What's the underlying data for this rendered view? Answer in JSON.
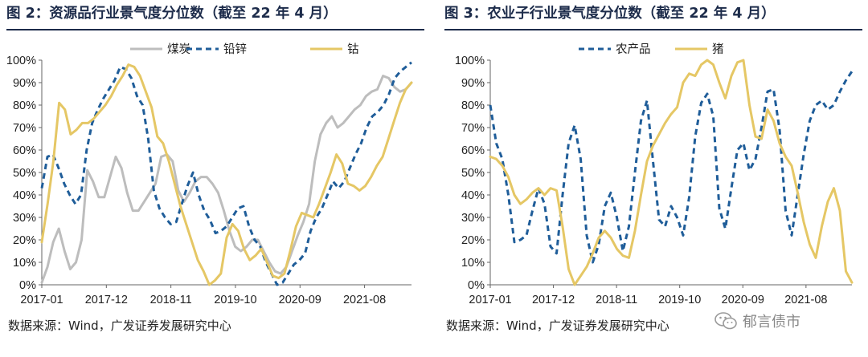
{
  "panels": [
    {
      "title": "图 2：资源品行业景气度分位数（截至 22 年 4 月）",
      "source": "数据来源：Wind，广发证券发展研究中心"
    },
    {
      "title": "图 3：农业子行业景气度分位数（截至 22 年 4 月）",
      "source": "数据来源：Wind，广发证券发展研究中心"
    }
  ],
  "watermark": {
    "text": "郁言债市",
    "icon": "wechat-icon"
  },
  "chart_data": [
    {
      "type": "line",
      "title": "图 2：资源品行业景气度分位数（截至 22 年 4 月）",
      "x_tick_labels": [
        "2017-01",
        "2017-12",
        "2018-11",
        "2019-10",
        "2020-09",
        "2021-08"
      ],
      "x_start": "2017-01",
      "x_end": "2022-04",
      "y_tick_labels": [
        "0%",
        "10%",
        "20%",
        "30%",
        "40%",
        "50%",
        "60%",
        "70%",
        "80%",
        "90%",
        "100%"
      ],
      "ylim": [
        0,
        100
      ],
      "grid": false,
      "legend_position": "top",
      "series": [
        {
          "name": "煤炭",
          "color": "#bdbdbd",
          "dash": "solid",
          "values": [
            1,
            8,
            19,
            25,
            15,
            7,
            10,
            20,
            51,
            46,
            39,
            39,
            48,
            57,
            52,
            41,
            33,
            33,
            37,
            41,
            45,
            57,
            58,
            55,
            42,
            37,
            41,
            46,
            48,
            48,
            45,
            41,
            33,
            24,
            17,
            15,
            17,
            20,
            20,
            15,
            10,
            6,
            5,
            8,
            15,
            22,
            28,
            36,
            55,
            67,
            72,
            75,
            70,
            72,
            75,
            78,
            80,
            84,
            86,
            87,
            93,
            92,
            88,
            86,
            87,
            90
          ]
        },
        {
          "name": "铅锌",
          "color": "#1f5d99",
          "dash": "dashed",
          "values": [
            43,
            57,
            58,
            52,
            45,
            40,
            36,
            40,
            60,
            72,
            78,
            83,
            87,
            91,
            97,
            96,
            92,
            84,
            80,
            65,
            42,
            34,
            30,
            27,
            28,
            36,
            44,
            50,
            40,
            33,
            29,
            23,
            24,
            26,
            30,
            34,
            35,
            26,
            20,
            17,
            10,
            5,
            0,
            1,
            5,
            9,
            11,
            14,
            24,
            30,
            34,
            40,
            46,
            43,
            46,
            52,
            58,
            63,
            70,
            75,
            77,
            80,
            85,
            92,
            95,
            97,
            99
          ]
        },
        {
          "name": "钴",
          "color": "#e5c765",
          "dash": "solid",
          "values": [
            19,
            36,
            55,
            81,
            78,
            67,
            69,
            72,
            72,
            74,
            77,
            80,
            84,
            89,
            93,
            98,
            97,
            93,
            86,
            79,
            66,
            63,
            55,
            45,
            35,
            27,
            19,
            11,
            6,
            0,
            2,
            5,
            21,
            27,
            24,
            16,
            11,
            13,
            16,
            10,
            4,
            3,
            5,
            15,
            26,
            32,
            31,
            30,
            36,
            43,
            50,
            58,
            54,
            45,
            44,
            42,
            44,
            48,
            53,
            57,
            65,
            73,
            81,
            87,
            90
          ]
        }
      ]
    },
    {
      "type": "line",
      "title": "图 3：农业子行业景气度分位数（截至 22 年 4 月）",
      "x_tick_labels": [
        "2017-01",
        "2017-12",
        "2018-11",
        "2019-10",
        "2020-09",
        "2021-08"
      ],
      "x_start": "2017-01",
      "x_end": "2022-04",
      "y_tick_labels": [
        "0%",
        "10%",
        "20%",
        "30%",
        "40%",
        "50%",
        "60%",
        "70%",
        "80%",
        "90%",
        "100%"
      ],
      "ylim": [
        0,
        100
      ],
      "grid": false,
      "legend_position": "top",
      "series": [
        {
          "name": "农产品",
          "color": "#1f5d99",
          "dash": "dashed",
          "values": [
            80,
            63,
            56,
            40,
            19,
            20,
            22,
            33,
            43,
            36,
            17,
            14,
            40,
            63,
            71,
            56,
            22,
            10,
            18,
            35,
            41,
            30,
            15,
            26,
            50,
            73,
            82,
            55,
            29,
            26,
            35,
            30,
            22,
            39,
            66,
            81,
            85,
            75,
            34,
            25,
            43,
            60,
            63,
            51,
            56,
            70,
            86,
            87,
            69,
            33,
            22,
            40,
            58,
            73,
            80,
            82,
            78,
            80,
            86,
            91,
            95
          ]
        },
        {
          "name": "猪",
          "color": "#e5c765",
          "dash": "solid",
          "values": [
            57,
            56,
            53,
            48,
            40,
            36,
            38,
            41,
            43,
            40,
            43,
            42,
            26,
            7,
            0,
            4,
            8,
            14,
            21,
            24,
            21,
            16,
            13,
            12,
            24,
            40,
            55,
            62,
            67,
            72,
            76,
            79,
            90,
            94,
            93,
            98,
            100,
            98,
            90,
            83,
            93,
            99,
            100,
            80,
            66,
            65,
            78,
            73,
            63,
            57,
            53,
            41,
            28,
            18,
            12,
            26,
            37,
            43,
            33,
            6,
            1
          ]
        }
      ]
    }
  ]
}
